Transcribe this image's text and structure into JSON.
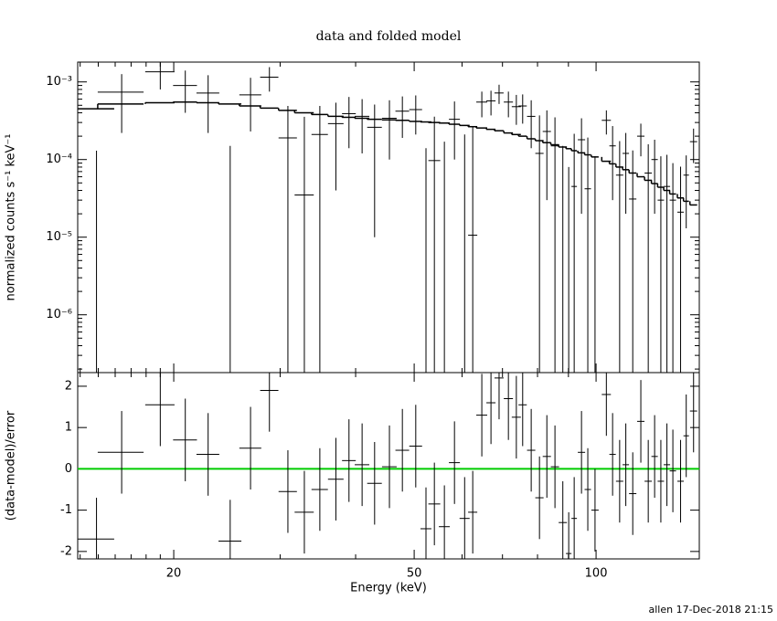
{
  "chart_data": [
    {
      "type": "errorbar",
      "title": "data and folded model",
      "ylabel": "normalized counts s⁻¹ keV⁻¹",
      "xlog": true,
      "ylog": true,
      "xlim": [
        13.87,
        148.2
      ],
      "xticks": [
        20,
        50,
        100
      ],
      "xminorticks": [
        14,
        15,
        16,
        17,
        18,
        19,
        30,
        40,
        60,
        70,
        80,
        90
      ],
      "show_xtick_labels": false,
      "ylim": [
        1.8e-07,
        0.0018
      ],
      "yticks": [
        {
          "value": 0.001,
          "label": "10⁻³"
        },
        {
          "value": 0.0001,
          "label": "10⁻⁴"
        },
        {
          "value": 1e-05,
          "label": "10⁻⁵"
        },
        {
          "value": 1e-06,
          "label": "10⁻⁶"
        }
      ],
      "yminorticks": [
        2e-07,
        3e-07,
        4e-07,
        5e-07,
        6e-07,
        7e-07,
        8e-07,
        9e-07,
        2e-06,
        3e-06,
        4e-06,
        5e-06,
        6e-06,
        7e-06,
        8e-06,
        9e-06,
        2e-05,
        3e-05,
        4e-05,
        5e-05,
        6e-05,
        7e-05,
        8e-05,
        9e-05,
        0.0002,
        0.0003,
        0.0004,
        0.0005,
        0.0006,
        0.0007,
        0.0008,
        0.0009
      ],
      "color": "#000000",
      "model_color": "#000000",
      "x": [
        14.9,
        16.4,
        19.0,
        20.9,
        22.8,
        24.8,
        26.8,
        28.8,
        30.9,
        32.9,
        34.9,
        37.1,
        39.0,
        41.0,
        43.0,
        45.5,
        47.8,
        50.3,
        52.3,
        54.0,
        56.1,
        58.3,
        60.6,
        62.5,
        64.7,
        67.0,
        69.1,
        71.6,
        73.8,
        75.6,
        78.1,
        80.6,
        82.9,
        85.5,
        88.1,
        90.1,
        92.0,
        94.6,
        96.9,
        99.6,
        104,
        106.5,
        109.4,
        112,
        115,
        118.6,
        122,
        125,
        128,
        131,
        134,
        138,
        141,
        145
      ],
      "xerr": [
        1.04,
        1.43,
        1.06,
        0.95,
        0.99,
        1.08,
        1.12,
        1.0,
        1.08,
        1.2,
        1.09,
        1.1,
        1.02,
        1.14,
        1.2,
        1.27,
        1.25,
        1.23,
        1.09,
        1.22,
        1.17,
        1.22,
        1.16,
        1.09,
        1.35,
        1.17,
        1.2,
        1.25,
        1.28,
        1.19,
        1.23,
        1.27,
        1.3,
        1.34,
        1.38,
        0.94,
        0.96,
        1.32,
        1.18,
        1.39,
        1.81,
        1.3,
        1.52,
        1.37,
        1.6,
        1.65,
        1.7,
        1.52,
        1.56,
        1.6,
        1.63,
        1.68,
        1.47,
        2.0
      ],
      "values": [
        -0.0003,
        0.00074,
        0.00135,
        0.0009,
        0.00072,
        -0.0004,
        0.00068,
        0.00115,
        0.00019,
        3.5e-05,
        0.00021,
        0.00029,
        0.00039,
        0.00036,
        0.00026,
        0.00034,
        0.00042,
        0.00044,
        -0.00015,
        9.7e-05,
        -0.0001,
        0.00033,
        -4e-05,
        1.06e-05,
        0.00055,
        0.00057,
        0.00072,
        0.00055,
        0.00048,
        0.00049,
        0.00036,
        0.00012,
        0.00023,
        0.00015,
        -5e-05,
        -0.0001,
        4.5e-05,
        0.00018,
        4.2e-05,
        -3e-05,
        0.00032,
        0.00015,
        6.3e-05,
        0.00012,
        3.1e-05,
        0.0002,
        6.7e-05,
        0.0001,
        3e-05,
        4.5e-05,
        3e-05,
        2.1e-05,
        6.3e-05,
        0.00017
      ],
      "yerr": [
        0.00043,
        0.00052,
        0.00055,
        0.0005,
        0.0005,
        0.00055,
        0.00045,
        0.0004,
        0.0003,
        0.00032,
        0.00028,
        0.00025,
        0.00025,
        0.00024,
        0.00025,
        0.00024,
        0.00023,
        0.00023,
        0.00029,
        0.00026,
        0.00027,
        0.00023,
        0.00025,
        0.00026,
        0.0002,
        0.0002,
        0.0002,
        0.0002,
        0.0002,
        0.0002,
        0.00022,
        0.00025,
        0.0002,
        0.0002,
        0.0002,
        0.00018,
        0.00017,
        0.00016,
        0.00015,
        0.00014,
        0.00011,
        0.00012,
        0.00011,
        0.0001,
        0.0001,
        9e-05,
        9e-05,
        8e-05,
        8e-05,
        7e-05,
        6e-05,
        6e-05,
        5e-05,
        8e-05
      ],
      "model": [
        0.00045,
        0.00052,
        0.00054,
        0.00055,
        0.00054,
        0.00052,
        0.00049,
        0.00046,
        0.00043,
        0.0004,
        0.00038,
        0.00036,
        0.00035,
        0.00034,
        0.00033,
        0.000325,
        0.00032,
        0.00031,
        0.000305,
        0.0003,
        0.000295,
        0.000285,
        0.000275,
        0.000265,
        0.000255,
        0.000245,
        0.000235,
        0.00022,
        0.00021,
        0.0002,
        0.000185,
        0.000175,
        0.000165,
        0.000155,
        0.000145,
        0.000138,
        0.00013,
        0.000122,
        0.000115,
        0.000108,
        9.5e-05,
        8.8e-05,
        8e-05,
        7.4e-05,
        6.7e-05,
        6e-05,
        5.4e-05,
        4.9e-05,
        4.4e-05,
        4e-05,
        3.6e-05,
        3.2e-05,
        2.9e-05,
        2.6e-05
      ]
    },
    {
      "type": "errorbar",
      "ylabel": "(data-model)/error",
      "xlabel": "Energy (keV)",
      "xlog": true,
      "ylog": false,
      "xlim": [
        13.87,
        148.2
      ],
      "xticks": [
        20,
        50,
        100
      ],
      "xminorticks": [
        14,
        15,
        16,
        17,
        18,
        19,
        30,
        40,
        60,
        70,
        80,
        90
      ],
      "show_xtick_labels": true,
      "ylim": [
        -2.18,
        2.33
      ],
      "yticks": [
        -2,
        -1,
        0,
        1,
        2
      ],
      "color": "#000000",
      "reference_line": {
        "value": 0,
        "color": "#00cc00"
      },
      "x": [
        14.9,
        16.4,
        19.0,
        20.9,
        22.8,
        24.8,
        26.8,
        28.8,
        30.9,
        32.9,
        34.9,
        37.1,
        39.0,
        41.0,
        43.0,
        45.5,
        47.8,
        50.3,
        52.3,
        54.0,
        56.1,
        58.3,
        60.6,
        62.5,
        64.7,
        67.0,
        69.1,
        71.6,
        73.8,
        75.6,
        78.1,
        80.6,
        82.9,
        85.5,
        88.1,
        90.1,
        92.0,
        94.6,
        96.9,
        99.6,
        104,
        106.5,
        109.4,
        112,
        115,
        118.6,
        122,
        125,
        128,
        131,
        134,
        138,
        141,
        145
      ],
      "xerr": [
        1.04,
        1.43,
        1.06,
        0.95,
        0.99,
        1.08,
        1.12,
        1.0,
        1.08,
        1.2,
        1.09,
        1.1,
        1.02,
        1.14,
        1.2,
        1.27,
        1.25,
        1.23,
        1.09,
        1.22,
        1.17,
        1.22,
        1.16,
        1.09,
        1.35,
        1.17,
        1.2,
        1.25,
        1.28,
        1.19,
        1.23,
        1.27,
        1.3,
        1.34,
        1.38,
        0.94,
        0.96,
        1.32,
        1.18,
        1.39,
        1.81,
        1.3,
        1.52,
        1.37,
        1.6,
        1.65,
        1.7,
        1.52,
        1.56,
        1.6,
        1.63,
        1.68,
        1.47,
        2.0
      ],
      "values": [
        -1.7,
        0.4,
        1.55,
        0.7,
        0.35,
        -1.75,
        0.5,
        1.9,
        -0.55,
        -1.05,
        -0.5,
        -0.25,
        0.2,
        0.1,
        -0.35,
        0.05,
        0.45,
        0.55,
        -1.45,
        -0.85,
        -1.4,
        0.15,
        -1.2,
        -1.05,
        1.3,
        1.6,
        2.2,
        1.7,
        1.25,
        1.55,
        0.45,
        -0.7,
        0.3,
        0.05,
        -1.3,
        -2.05,
        -1.2,
        0.4,
        -0.5,
        -1.0,
        1.8,
        0.35,
        -0.3,
        0.1,
        -0.6,
        1.15,
        -0.3,
        0.3,
        -0.3,
        0.1,
        -0.05,
        -0.3,
        0.8,
        1.4
      ],
      "yerr": [
        1,
        1,
        1,
        1,
        1,
        1,
        1,
        1,
        1,
        1,
        1,
        1,
        1,
        1,
        1,
        1,
        1,
        1,
        1,
        1,
        1,
        1,
        1,
        1,
        1,
        1,
        1,
        1,
        1,
        1,
        1,
        1,
        1,
        1,
        1,
        1,
        1,
        1,
        1,
        1,
        1,
        1,
        1,
        1,
        1,
        1,
        1,
        1,
        1,
        1,
        1,
        1,
        1,
        1
      ]
    }
  ],
  "footer": "allen 17-Dec-2018 21:15"
}
